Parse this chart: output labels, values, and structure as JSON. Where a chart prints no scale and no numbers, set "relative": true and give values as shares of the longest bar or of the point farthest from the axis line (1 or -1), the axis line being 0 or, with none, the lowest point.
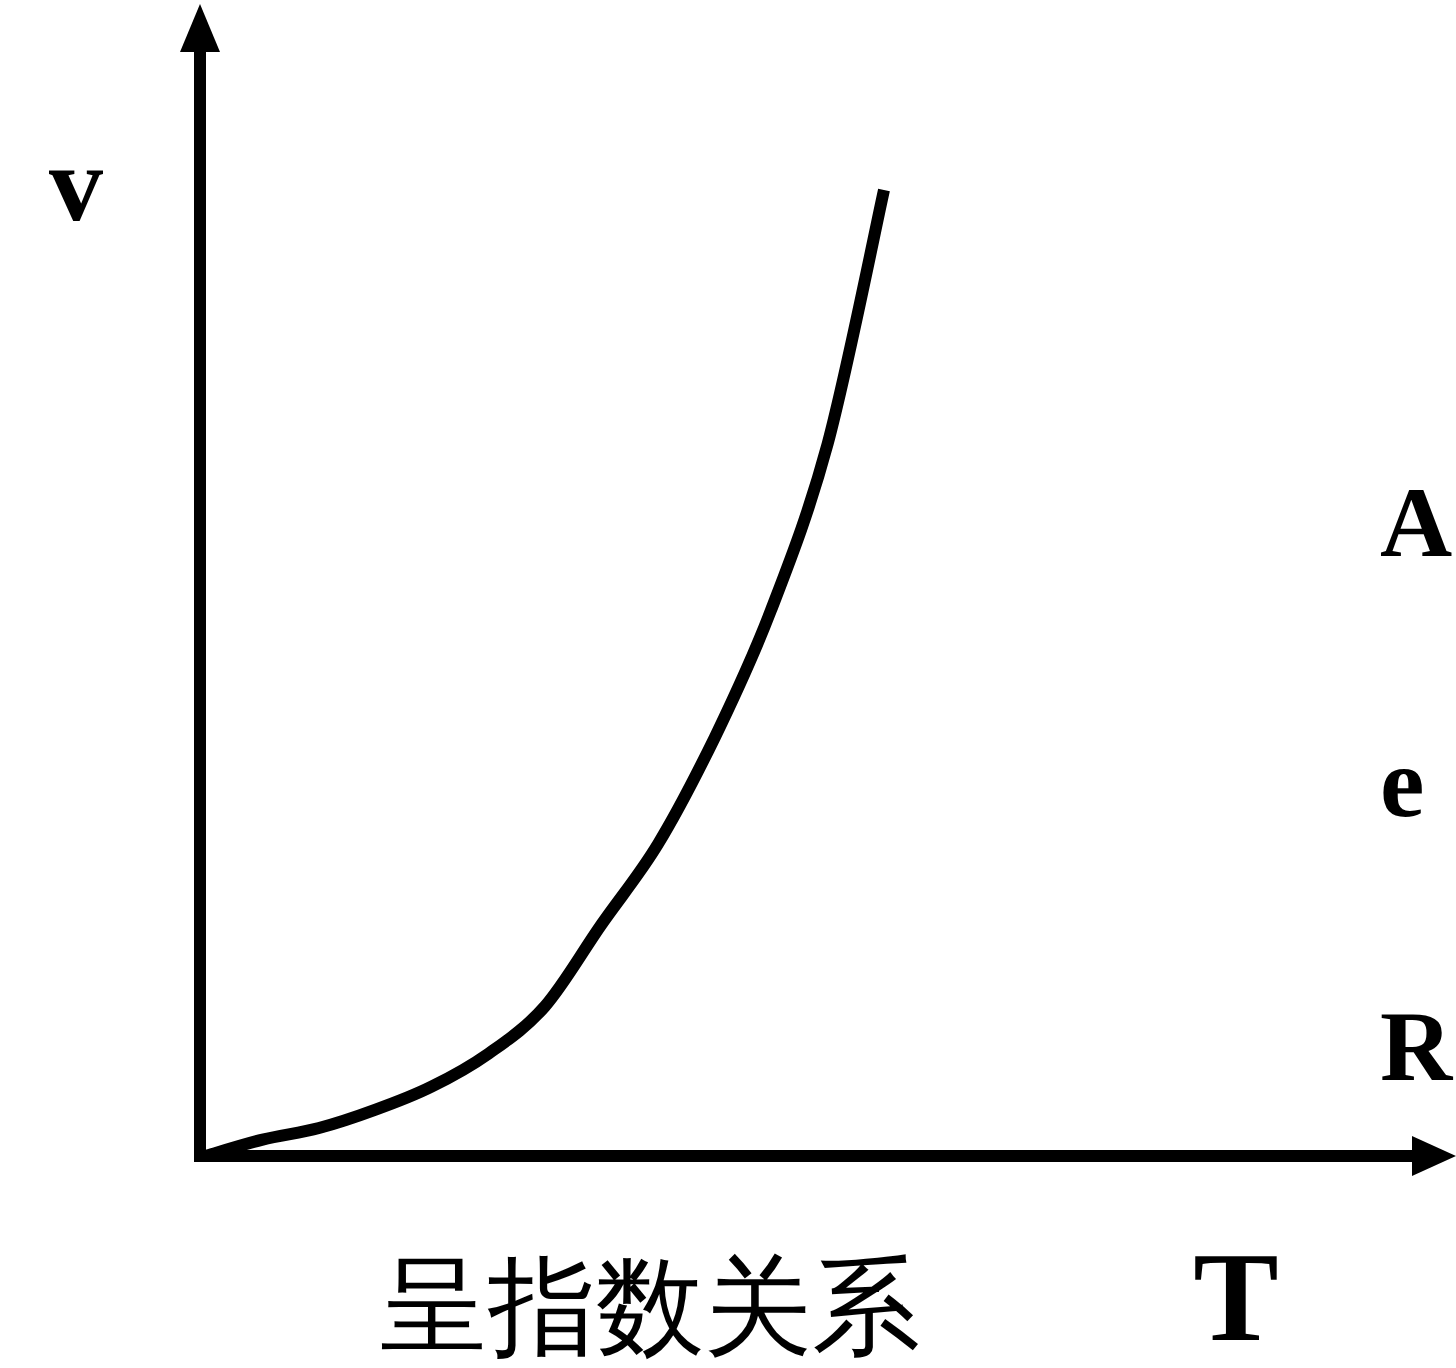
{
  "chart_data": {
    "type": "line",
    "relative": true,
    "xlabel": "T",
    "ylabel": "v",
    "color": "#000000",
    "categories": [
      null,
      null,
      null,
      null,
      null,
      null,
      null,
      null,
      null,
      null,
      null,
      null,
      null
    ],
    "values": [
      0,
      0.017,
      0.029,
      0.048,
      0.072,
      0.106,
      0.155,
      0.24,
      0.323,
      0.433,
      0.565,
      0.737,
      1
    ],
    "annotations": [
      "呈指数关系",
      "A",
      "e",
      "R"
    ]
  }
}
